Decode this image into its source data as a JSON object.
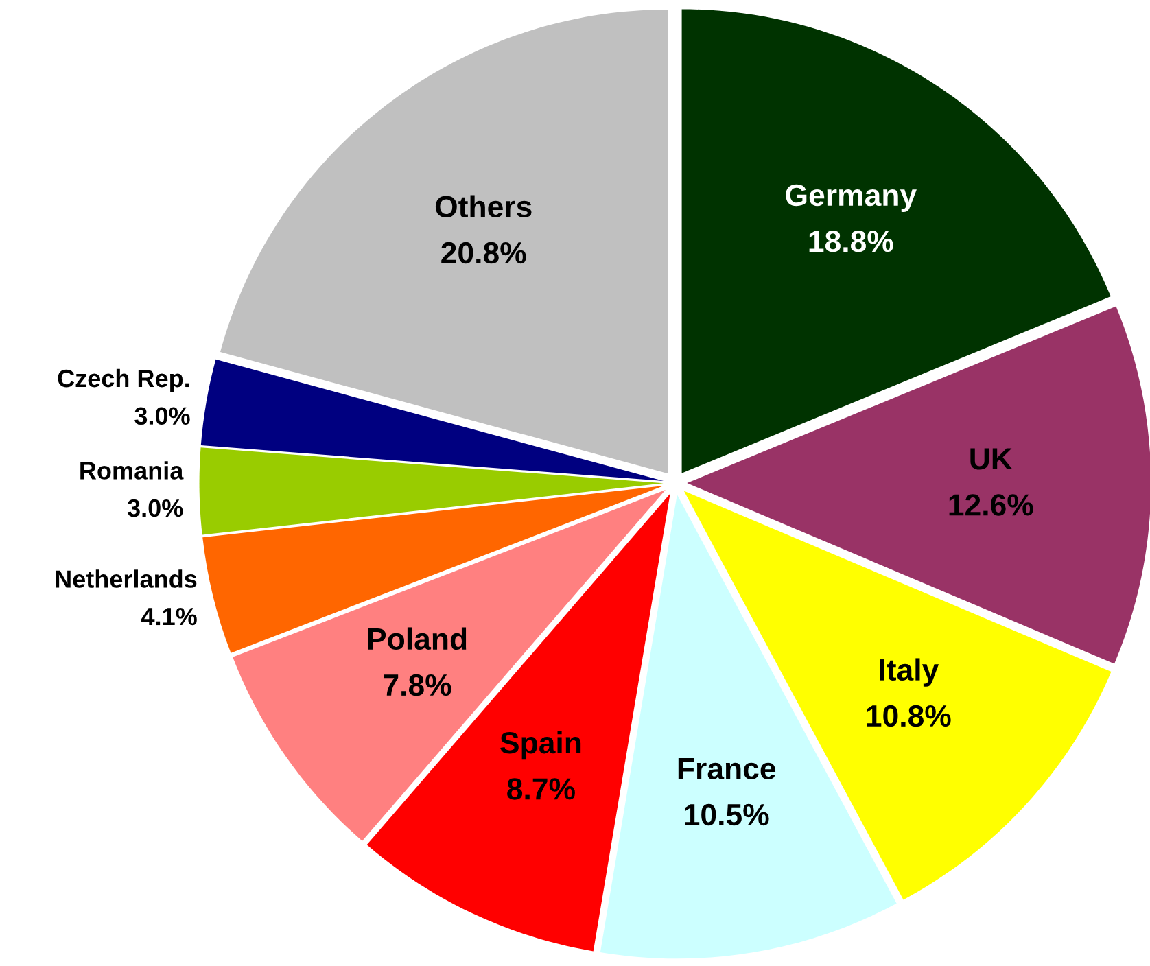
{
  "chart_data": {
    "type": "pie",
    "categories": [
      "Germany",
      "UK",
      "Italy",
      "France",
      "Spain",
      "Poland",
      "Netherlands",
      "Romania",
      "Czech Rep.",
      "Others"
    ],
    "values": [
      18.8,
      12.6,
      10.8,
      10.5,
      8.7,
      7.8,
      4.1,
      3.0,
      3.0,
      20.8
    ],
    "value_labels": [
      "18.8%",
      "12.6%",
      "10.8%",
      "10.5%",
      "8.7%",
      "7.8%",
      "4.1%",
      "3.0%",
      "3.0%",
      "20.8%"
    ],
    "colors": [
      "#003300",
      "#993366",
      "#ffff00",
      "#ccffff",
      "#ff0000",
      "#ff8080",
      "#ff6600",
      "#99cc00",
      "#000080",
      "#c0c0c0"
    ],
    "legend": false
  }
}
